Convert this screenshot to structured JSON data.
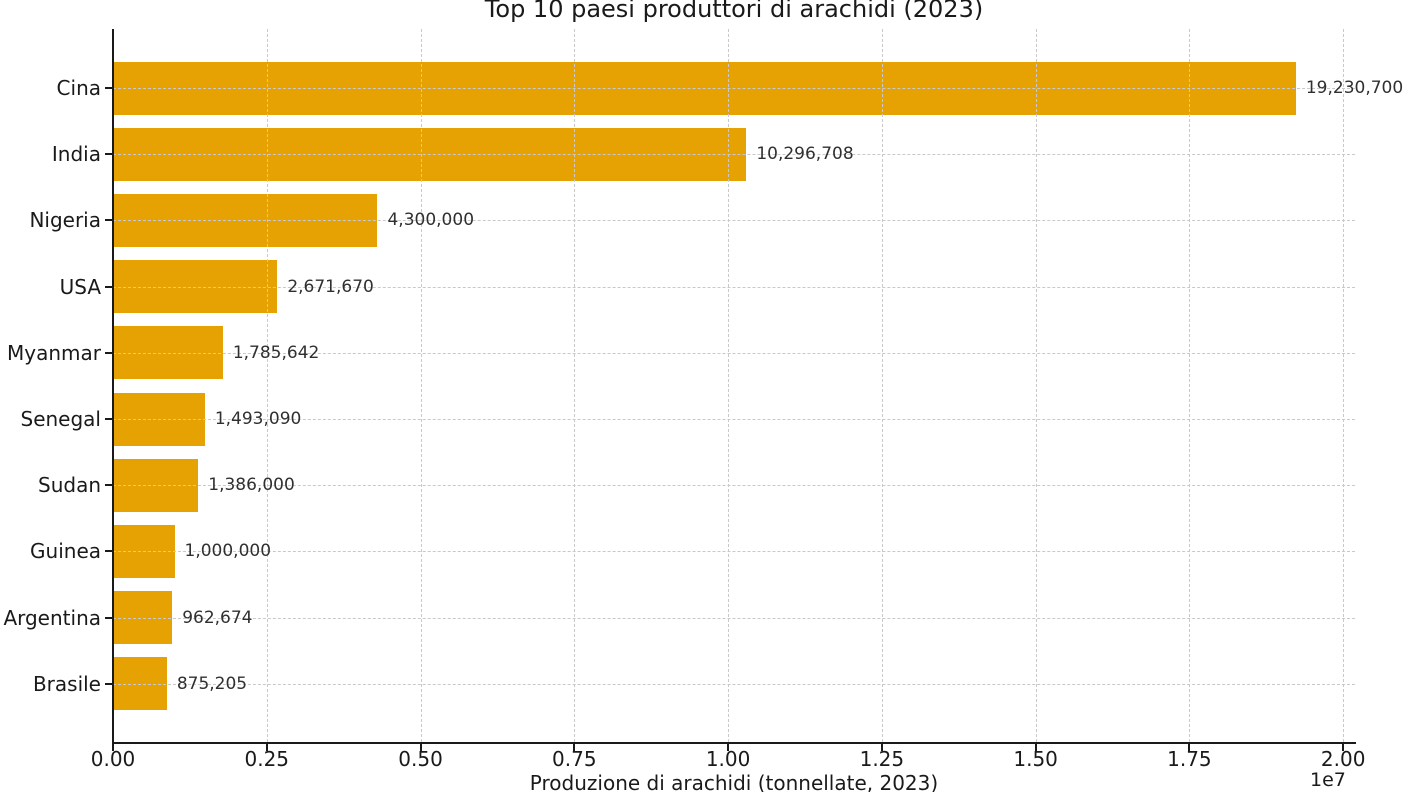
{
  "figure": {
    "background": "#ffffff"
  },
  "chart_data": {
    "type": "bar",
    "orientation": "horizontal",
    "title": "Top 10 paesi produttori di arachidi (2023)",
    "xlabel": "Produzione di arachidi (tonnellate, 2023)",
    "offset_text": "1e7",
    "categories": [
      "Cina",
      "India",
      "Nigeria",
      "USA",
      "Myanmar",
      "Senegal",
      "Sudan",
      "Guinea",
      "Argentina",
      "Brasile"
    ],
    "values": [
      19230700,
      10296708,
      4300000,
      2671670,
      1785642,
      1493090,
      1386000,
      1000000,
      962674,
      875205
    ],
    "value_labels": [
      "19,230,700",
      "10,296,708",
      "4,300,000",
      "2,671,670",
      "1,785,642",
      "1,493,090",
      "1,386,000",
      "1,000,000",
      "962,674",
      "875,205"
    ],
    "xlim": [
      0,
      20192235
    ],
    "xticks": [
      0,
      2500000,
      5000000,
      7500000,
      10000000,
      12500000,
      15000000,
      17500000,
      20000000
    ],
    "xtick_labels": [
      "0.00",
      "0.25",
      "0.50",
      "0.75",
      "1.00",
      "1.25",
      "1.50",
      "1.75",
      "2.00"
    ],
    "bar_color": "#E6A203",
    "grid": true,
    "grid_color": "#c9c9c9",
    "grid_style": "dashed",
    "legend": null
  }
}
